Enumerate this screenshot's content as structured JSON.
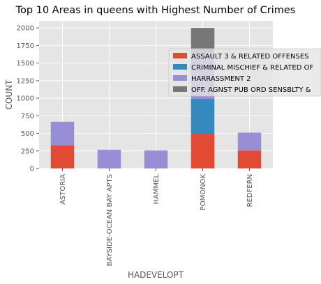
{
  "chart_data": {
    "type": "bar",
    "stacked": true,
    "title": "Top 10 Areas in queens with Highest Number of Crimes",
    "xlabel": "HADEVELOPT",
    "ylabel": "COUNT",
    "categories": [
      "ASTORIA",
      "BAYSIDE-OCEAN BAY APTS",
      "HAMMEL",
      "POMONOK",
      "REDFERN"
    ],
    "ylim": [
      0,
      2100
    ],
    "yticks": [
      0,
      250,
      500,
      750,
      1000,
      1250,
      1500,
      1750,
      2000
    ],
    "grid": true,
    "legend_position": "right",
    "series": [
      {
        "name": "ASSAULT 3 & RELATED OFFENSES",
        "color": "#E24A33",
        "values": [
          330,
          0,
          0,
          490,
          255
        ]
      },
      {
        "name": "CRIMINAL MISCHIEF & RELATED OF",
        "color": "#348ABD",
        "values": [
          0,
          0,
          0,
          500,
          0
        ]
      },
      {
        "name": "HARRASSMENT 2",
        "color": "#988ED5",
        "values": [
          335,
          265,
          255,
          670,
          255
        ]
      },
      {
        "name": "OFF. AGNST PUB ORD SENSBLTY &",
        "color": "#777777",
        "values": [
          0,
          0,
          0,
          340,
          0
        ]
      }
    ]
  }
}
